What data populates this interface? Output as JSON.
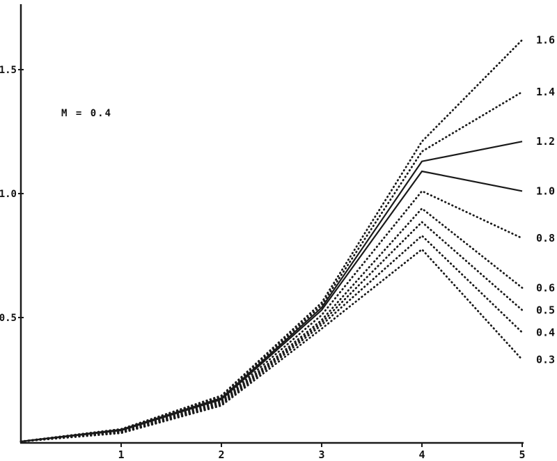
{
  "chart_data": {
    "type": "line",
    "title": "",
    "xlabel": "",
    "ylabel": "",
    "annotation": "M = 0.4",
    "xlim": [
      0,
      5
    ],
    "ylim": [
      0,
      1.7
    ],
    "x_ticks": [
      "1",
      "2",
      "3",
      "4",
      "5"
    ],
    "x_tick_values": [
      1,
      2,
      3,
      4,
      5
    ],
    "y_ticks": [
      "0.5",
      "1.0",
      "1.5"
    ],
    "y_tick_values": [
      0.5,
      1.0,
      1.5
    ],
    "x": [
      0,
      1,
      2,
      3,
      4,
      5
    ],
    "grid": false,
    "legend_position": "right-edge-labels",
    "line_color": "#1a1a1a",
    "series": [
      {
        "name": "1.6",
        "style": "dotted",
        "values": [
          0,
          0.05,
          0.185,
          0.56,
          1.21,
          1.62
        ]
      },
      {
        "name": "1.4",
        "style": "dotted",
        "values": [
          0,
          0.05,
          0.18,
          0.55,
          1.17,
          1.41
        ]
      },
      {
        "name": "1.2",
        "style": "solid",
        "values": [
          0,
          0.048,
          0.175,
          0.54,
          1.13,
          1.21
        ]
      },
      {
        "name": "1.0",
        "style": "solid",
        "values": [
          0,
          0.045,
          0.17,
          0.53,
          1.09,
          1.01
        ]
      },
      {
        "name": "0.8",
        "style": "dotted",
        "values": [
          0,
          0.042,
          0.165,
          0.51,
          1.01,
          0.82
        ]
      },
      {
        "name": "0.6",
        "style": "dotted",
        "values": [
          0,
          0.04,
          0.16,
          0.49,
          0.94,
          0.62
        ]
      },
      {
        "name": "0.5",
        "style": "dotted",
        "values": [
          0,
          0.038,
          0.155,
          0.48,
          0.885,
          0.53
        ]
      },
      {
        "name": "0.4",
        "style": "dotted",
        "values": [
          0,
          0.036,
          0.15,
          0.47,
          0.83,
          0.44
        ]
      },
      {
        "name": "0.3",
        "style": "dotted",
        "values": [
          0,
          0.034,
          0.145,
          0.455,
          0.775,
          0.33
        ]
      }
    ]
  }
}
